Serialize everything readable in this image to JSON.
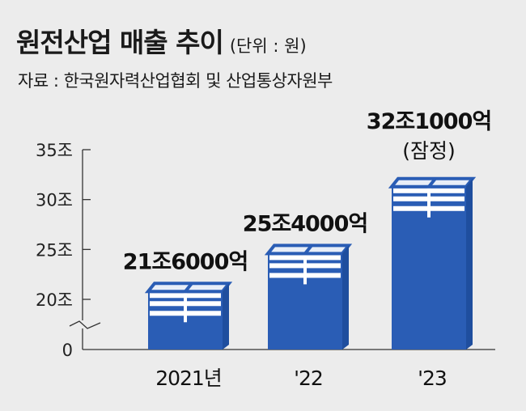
{
  "header": {
    "title": "원전산업 매출 추이",
    "unit": "(단위 : 원)",
    "source": "자료 : 한국원자력산업협회 및 산업통상자원부"
  },
  "chart_data": {
    "type": "bar",
    "title": "원전산업 매출 추이",
    "unit": "(단위 : 원)",
    "categories": [
      "2021년",
      "'22",
      "'23"
    ],
    "values": [
      21.6,
      25.4,
      32.1
    ],
    "value_labels": [
      "21조6000억",
      "25조4000억",
      "32조1000억"
    ],
    "annotations": [
      "",
      "",
      "(잠정)"
    ],
    "y_axis": {
      "ticks": [
        0,
        20,
        25,
        30,
        35
      ],
      "tick_labels": [
        "0",
        "20조",
        "25조",
        "30조",
        "35조"
      ],
      "axis_break": true,
      "break_between": [
        0,
        20
      ]
    },
    "ylim": [
      0,
      35
    ],
    "grid": false,
    "bar_color": "#2a5db5"
  }
}
